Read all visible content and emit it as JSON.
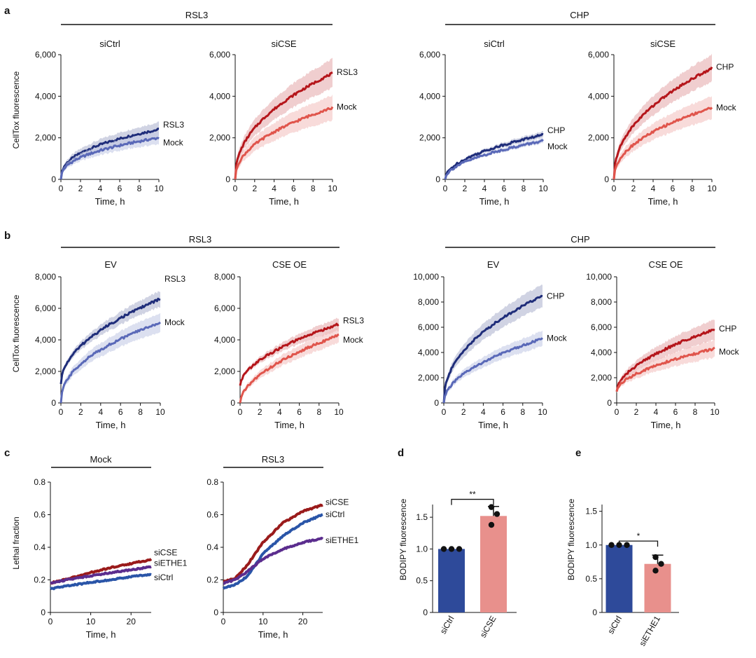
{
  "colors": {
    "navy_dark": "#1f2d7a",
    "navy_light": "#5a69b8",
    "red_dark": "#b5161b",
    "red_light": "#e0554c",
    "blue": "#2a55a8",
    "purple": "#5b2d8e",
    "maroon": "#9a1b1b",
    "bar_blue": "#2e4a9a",
    "bar_pink": "#e8908c"
  },
  "panels": {
    "a": {
      "letter": "a",
      "group_left": "RSL3",
      "group_right": "CHP",
      "ylabel": "CellTox fluorescence"
    },
    "b": {
      "letter": "b",
      "group_left": "RSL3",
      "group_right": "CHP",
      "ylabel": "CellTox fluorescence"
    },
    "c": {
      "letter": "c",
      "ylabel": "Lethal fraction"
    },
    "d": {
      "letter": "d",
      "significance": "**",
      "ylabel": "BODIPY fluorescence"
    },
    "e": {
      "letter": "e",
      "significance": "*",
      "ylabel": "BODIPY fluorescence"
    }
  },
  "chart_data": [
    {
      "id": "a1",
      "type": "line",
      "title": "siCtrl",
      "xlabel": "Time, h",
      "ylabel": "CellTox fluorescence",
      "xlim": [
        0,
        10
      ],
      "ylim": [
        0,
        6000
      ],
      "xticks": [
        "0",
        "2",
        "4",
        "6",
        "8",
        "10"
      ],
      "yticks": [
        "0",
        "2,000",
        "4,000",
        "6,000"
      ],
      "series": [
        {
          "name": "RSL3",
          "end": 2400,
          "band": 350,
          "shape": 0.4,
          "color": "navy_dark"
        },
        {
          "name": "Mock",
          "end": 2000,
          "band": 300,
          "shape": 0.4,
          "color": "navy_light"
        }
      ]
    },
    {
      "id": "a2",
      "type": "line",
      "title": "siCSE",
      "xlabel": "Time, h",
      "ylabel": "",
      "xlim": [
        0,
        10
      ],
      "ylim": [
        0,
        6000
      ],
      "xticks": [
        "0",
        "2",
        "4",
        "6",
        "8",
        "10"
      ],
      "yticks": [
        "0",
        "2,000",
        "4,000",
        "6,000"
      ],
      "series": [
        {
          "name": "RSL3",
          "end": 5100,
          "band": 700,
          "shape": 0.45,
          "color": "red_dark"
        },
        {
          "name": "Mock",
          "end": 3450,
          "band": 600,
          "shape": 0.45,
          "color": "red_light"
        }
      ]
    },
    {
      "id": "a3",
      "type": "line",
      "title": "siCtrl",
      "xlabel": "Time, h",
      "ylabel": "",
      "xlim": [
        0,
        10
      ],
      "ylim": [
        0,
        6000
      ],
      "xticks": [
        "0",
        "2",
        "4",
        "6",
        "8",
        "10"
      ],
      "yticks": [
        "0",
        "2,000",
        "4,000",
        "6,000"
      ],
      "series": [
        {
          "name": "CHP",
          "end": 2150,
          "band": 150,
          "shape": 0.5,
          "color": "navy_dark"
        },
        {
          "name": "Mock",
          "end": 1850,
          "band": 120,
          "shape": 0.5,
          "color": "navy_light"
        }
      ]
    },
    {
      "id": "a4",
      "type": "line",
      "title": "siCSE",
      "xlabel": "Time, h",
      "ylabel": "",
      "xlim": [
        0,
        10
      ],
      "ylim": [
        0,
        6000
      ],
      "xticks": [
        "0",
        "2",
        "4",
        "6",
        "8",
        "10"
      ],
      "yticks": [
        "0",
        "2,000",
        "4,000",
        "6,000"
      ],
      "series": [
        {
          "name": "CHP",
          "end": 5350,
          "band": 650,
          "shape": 0.45,
          "color": "red_dark"
        },
        {
          "name": "Mock",
          "end": 3450,
          "band": 550,
          "shape": 0.45,
          "color": "red_light"
        }
      ]
    },
    {
      "id": "b1",
      "type": "line",
      "title": "EV",
      "xlabel": "Time, h",
      "ylabel": "CellTox fluorescence",
      "xlim": [
        0,
        10
      ],
      "ylim": [
        0,
        8000
      ],
      "xticks": [
        "0",
        "2",
        "4",
        "6",
        "8",
        "10"
      ],
      "yticks": [
        "0",
        "2,000",
        "4,000",
        "6,000",
        "8,000"
      ],
      "series": [
        {
          "name": "RSL3",
          "end": 6600,
          "band": 500,
          "shape": 0.5,
          "start": 1200,
          "color": "navy_dark"
        },
        {
          "name": "Mock",
          "end": 5100,
          "band": 600,
          "shape": 0.45,
          "color": "navy_light"
        }
      ]
    },
    {
      "id": "b2",
      "type": "line",
      "title": "CSE OE",
      "xlabel": "Time, h",
      "ylabel": "",
      "xlim": [
        0,
        10
      ],
      "ylim": [
        0,
        8000
      ],
      "xticks": [
        "0",
        "2",
        "4",
        "6",
        "8",
        "10"
      ],
      "yticks": [
        "0",
        "2,000",
        "4,000",
        "6,000",
        "8,000"
      ],
      "series": [
        {
          "name": "RSL3",
          "end": 5000,
          "band": 400,
          "shape": 0.55,
          "start": 1100,
          "color": "red_dark"
        },
        {
          "name": "Mock",
          "end": 4300,
          "band": 500,
          "shape": 0.55,
          "color": "red_light"
        }
      ]
    },
    {
      "id": "b3",
      "type": "line",
      "title": "EV",
      "xlabel": "Time, h",
      "ylabel": "",
      "xlim": [
        0,
        10
      ],
      "ylim": [
        0,
        10000
      ],
      "xticks": [
        "0",
        "2",
        "4",
        "6",
        "8",
        "10"
      ],
      "yticks": [
        "0",
        "2,000",
        "4,000",
        "6,000",
        "8,000",
        "10,000"
      ],
      "series": [
        {
          "name": "CHP",
          "end": 8500,
          "band": 900,
          "shape": 0.45,
          "color": "navy_dark"
        },
        {
          "name": "Mock",
          "end": 5100,
          "band": 600,
          "shape": 0.5,
          "color": "navy_light"
        }
      ]
    },
    {
      "id": "b4",
      "type": "line",
      "title": "CSE OE",
      "xlabel": "Time, h",
      "ylabel": "",
      "xlim": [
        0,
        10
      ],
      "ylim": [
        0,
        10000
      ],
      "xticks": [
        "0",
        "2",
        "4",
        "6",
        "8",
        "10"
      ],
      "yticks": [
        "0",
        "2,000",
        "4,000",
        "6,000",
        "8,000",
        "10,000"
      ],
      "series": [
        {
          "name": "CHP",
          "end": 5850,
          "band": 800,
          "shape": 0.55,
          "start": 900,
          "color": "red_dark"
        },
        {
          "name": "Mock",
          "end": 4300,
          "band": 700,
          "shape": 0.55,
          "start": 900,
          "color": "red_light"
        }
      ]
    },
    {
      "id": "c1",
      "type": "line",
      "title": "Mock",
      "xlabel": "Time, h",
      "ylabel": "Lethal fraction",
      "xlim": [
        0,
        25
      ],
      "ylim": [
        0,
        0.8
      ],
      "xticks": [
        "0",
        "10",
        "20"
      ],
      "xtickvals": [
        0,
        10,
        20
      ],
      "yticks": [
        "0",
        "0.2",
        "0.4",
        "0.6",
        "0.8"
      ],
      "series": [
        {
          "name": "siCSE",
          "points": [
            [
              0,
              0.18
            ],
            [
              5,
              0.21
            ],
            [
              10,
              0.245
            ],
            [
              15,
              0.275
            ],
            [
              20,
              0.3
            ],
            [
              25,
              0.325
            ]
          ],
          "color": "maroon"
        },
        {
          "name": "siETHE1",
          "points": [
            [
              0,
              0.18
            ],
            [
              5,
              0.205
            ],
            [
              10,
              0.225
            ],
            [
              15,
              0.245
            ],
            [
              20,
              0.262
            ],
            [
              25,
              0.28
            ]
          ],
          "color": "purple"
        },
        {
          "name": "siCtrl",
          "points": [
            [
              0,
              0.145
            ],
            [
              5,
              0.165
            ],
            [
              10,
              0.185
            ],
            [
              15,
              0.2
            ],
            [
              20,
              0.22
            ],
            [
              25,
              0.235
            ]
          ],
          "color": "blue"
        }
      ]
    },
    {
      "id": "c2",
      "type": "line",
      "title": "RSL3",
      "xlabel": "Time, h",
      "ylabel": "",
      "xlim": [
        0,
        25
      ],
      "ylim": [
        0,
        0.8
      ],
      "xticks": [
        "0",
        "10",
        "20"
      ],
      "xtickvals": [
        0,
        10,
        20
      ],
      "yticks": [
        "0",
        "0.2",
        "0.4",
        "0.6",
        "0.8"
      ],
      "series": [
        {
          "name": "siCSE",
          "points": [
            [
              0,
              0.19
            ],
            [
              3,
              0.21
            ],
            [
              6,
              0.29
            ],
            [
              10,
              0.43
            ],
            [
              15,
              0.55
            ],
            [
              20,
              0.62
            ],
            [
              25,
              0.66
            ]
          ],
          "color": "maroon"
        },
        {
          "name": "siCtrl",
          "points": [
            [
              0,
              0.15
            ],
            [
              3,
              0.17
            ],
            [
              6,
              0.22
            ],
            [
              10,
              0.36
            ],
            [
              15,
              0.47
            ],
            [
              20,
              0.55
            ],
            [
              25,
              0.6
            ]
          ],
          "color": "blue"
        },
        {
          "name": "siETHE1",
          "points": [
            [
              0,
              0.18
            ],
            [
              3,
              0.2
            ],
            [
              6,
              0.25
            ],
            [
              10,
              0.33
            ],
            [
              15,
              0.39
            ],
            [
              20,
              0.43
            ],
            [
              25,
              0.455
            ]
          ],
          "color": "purple"
        }
      ]
    },
    {
      "id": "d",
      "type": "bar",
      "title": "",
      "ylabel": "BODIPY fluorescence",
      "ylim": [
        0,
        1.7
      ],
      "yticks": [
        "0",
        "0.5",
        "1.0",
        "1.5"
      ],
      "ytickvals": [
        0,
        0.5,
        1.0,
        1.5
      ],
      "categories": [
        "siCtrl",
        "siCSE"
      ],
      "values": [
        1.0,
        1.52
      ],
      "errors": [
        0.0,
        0.15
      ],
      "points": [
        [
          1.0,
          1.0,
          1.0
        ],
        [
          1.38,
          1.55,
          1.66
        ]
      ],
      "colors": [
        "bar_blue",
        "bar_pink"
      ],
      "significance": "**"
    },
    {
      "id": "e",
      "type": "bar",
      "title": "",
      "ylabel": "BODIPY fluorescence",
      "ylim": [
        0,
        1.6
      ],
      "yticks": [
        "0",
        "0.5",
        "1.0",
        "1.5"
      ],
      "ytickvals": [
        0,
        0.5,
        1.0,
        1.5
      ],
      "categories": [
        "siCtrl",
        "siETHE1"
      ],
      "values": [
        1.0,
        0.72
      ],
      "errors": [
        0.0,
        0.13
      ],
      "points": [
        [
          1.0,
          1.0,
          1.0
        ],
        [
          0.62,
          0.72,
          0.82
        ]
      ],
      "colors": [
        "bar_blue",
        "bar_pink"
      ],
      "significance": "*"
    }
  ]
}
